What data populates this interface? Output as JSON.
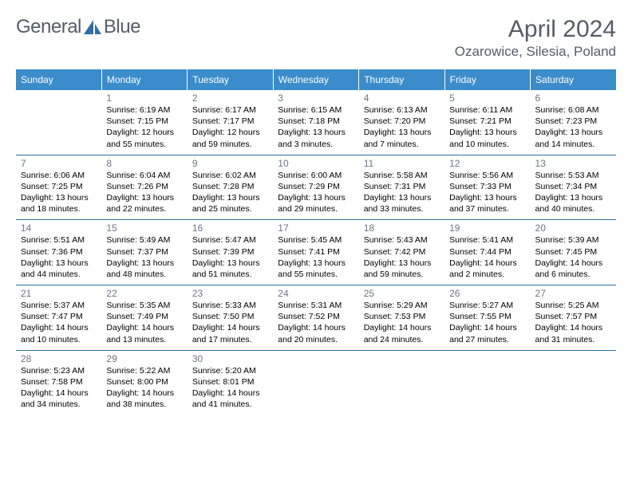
{
  "brand": {
    "part1": "General",
    "part2": "Blue",
    "logo_color": "#2f6fa3",
    "text_color": "#555d66"
  },
  "title": "April 2024",
  "location": "Ozarowice, Silesia, Poland",
  "header_bg": "#3b8ccb",
  "header_fg": "#ffffff",
  "rule_color": "#2f6fa3",
  "daynum_color": "#6b7684",
  "weekdays": [
    "Sunday",
    "Monday",
    "Tuesday",
    "Wednesday",
    "Thursday",
    "Friday",
    "Saturday"
  ],
  "weeks": [
    [
      null,
      {
        "n": "1",
        "sr": "Sunrise: 6:19 AM",
        "ss": "Sunset: 7:15 PM",
        "d1": "Daylight: 12 hours",
        "d2": "and 55 minutes."
      },
      {
        "n": "2",
        "sr": "Sunrise: 6:17 AM",
        "ss": "Sunset: 7:17 PM",
        "d1": "Daylight: 12 hours",
        "d2": "and 59 minutes."
      },
      {
        "n": "3",
        "sr": "Sunrise: 6:15 AM",
        "ss": "Sunset: 7:18 PM",
        "d1": "Daylight: 13 hours",
        "d2": "and 3 minutes."
      },
      {
        "n": "4",
        "sr": "Sunrise: 6:13 AM",
        "ss": "Sunset: 7:20 PM",
        "d1": "Daylight: 13 hours",
        "d2": "and 7 minutes."
      },
      {
        "n": "5",
        "sr": "Sunrise: 6:11 AM",
        "ss": "Sunset: 7:21 PM",
        "d1": "Daylight: 13 hours",
        "d2": "and 10 minutes."
      },
      {
        "n": "6",
        "sr": "Sunrise: 6:08 AM",
        "ss": "Sunset: 7:23 PM",
        "d1": "Daylight: 13 hours",
        "d2": "and 14 minutes."
      }
    ],
    [
      {
        "n": "7",
        "sr": "Sunrise: 6:06 AM",
        "ss": "Sunset: 7:25 PM",
        "d1": "Daylight: 13 hours",
        "d2": "and 18 minutes."
      },
      {
        "n": "8",
        "sr": "Sunrise: 6:04 AM",
        "ss": "Sunset: 7:26 PM",
        "d1": "Daylight: 13 hours",
        "d2": "and 22 minutes."
      },
      {
        "n": "9",
        "sr": "Sunrise: 6:02 AM",
        "ss": "Sunset: 7:28 PM",
        "d1": "Daylight: 13 hours",
        "d2": "and 25 minutes."
      },
      {
        "n": "10",
        "sr": "Sunrise: 6:00 AM",
        "ss": "Sunset: 7:29 PM",
        "d1": "Daylight: 13 hours",
        "d2": "and 29 minutes."
      },
      {
        "n": "11",
        "sr": "Sunrise: 5:58 AM",
        "ss": "Sunset: 7:31 PM",
        "d1": "Daylight: 13 hours",
        "d2": "and 33 minutes."
      },
      {
        "n": "12",
        "sr": "Sunrise: 5:56 AM",
        "ss": "Sunset: 7:33 PM",
        "d1": "Daylight: 13 hours",
        "d2": "and 37 minutes."
      },
      {
        "n": "13",
        "sr": "Sunrise: 5:53 AM",
        "ss": "Sunset: 7:34 PM",
        "d1": "Daylight: 13 hours",
        "d2": "and 40 minutes."
      }
    ],
    [
      {
        "n": "14",
        "sr": "Sunrise: 5:51 AM",
        "ss": "Sunset: 7:36 PM",
        "d1": "Daylight: 13 hours",
        "d2": "and 44 minutes."
      },
      {
        "n": "15",
        "sr": "Sunrise: 5:49 AM",
        "ss": "Sunset: 7:37 PM",
        "d1": "Daylight: 13 hours",
        "d2": "and 48 minutes."
      },
      {
        "n": "16",
        "sr": "Sunrise: 5:47 AM",
        "ss": "Sunset: 7:39 PM",
        "d1": "Daylight: 13 hours",
        "d2": "and 51 minutes."
      },
      {
        "n": "17",
        "sr": "Sunrise: 5:45 AM",
        "ss": "Sunset: 7:41 PM",
        "d1": "Daylight: 13 hours",
        "d2": "and 55 minutes."
      },
      {
        "n": "18",
        "sr": "Sunrise: 5:43 AM",
        "ss": "Sunset: 7:42 PM",
        "d1": "Daylight: 13 hours",
        "d2": "and 59 minutes."
      },
      {
        "n": "19",
        "sr": "Sunrise: 5:41 AM",
        "ss": "Sunset: 7:44 PM",
        "d1": "Daylight: 14 hours",
        "d2": "and 2 minutes."
      },
      {
        "n": "20",
        "sr": "Sunrise: 5:39 AM",
        "ss": "Sunset: 7:45 PM",
        "d1": "Daylight: 14 hours",
        "d2": "and 6 minutes."
      }
    ],
    [
      {
        "n": "21",
        "sr": "Sunrise: 5:37 AM",
        "ss": "Sunset: 7:47 PM",
        "d1": "Daylight: 14 hours",
        "d2": "and 10 minutes."
      },
      {
        "n": "22",
        "sr": "Sunrise: 5:35 AM",
        "ss": "Sunset: 7:49 PM",
        "d1": "Daylight: 14 hours",
        "d2": "and 13 minutes."
      },
      {
        "n": "23",
        "sr": "Sunrise: 5:33 AM",
        "ss": "Sunset: 7:50 PM",
        "d1": "Daylight: 14 hours",
        "d2": "and 17 minutes."
      },
      {
        "n": "24",
        "sr": "Sunrise: 5:31 AM",
        "ss": "Sunset: 7:52 PM",
        "d1": "Daylight: 14 hours",
        "d2": "and 20 minutes."
      },
      {
        "n": "25",
        "sr": "Sunrise: 5:29 AM",
        "ss": "Sunset: 7:53 PM",
        "d1": "Daylight: 14 hours",
        "d2": "and 24 minutes."
      },
      {
        "n": "26",
        "sr": "Sunrise: 5:27 AM",
        "ss": "Sunset: 7:55 PM",
        "d1": "Daylight: 14 hours",
        "d2": "and 27 minutes."
      },
      {
        "n": "27",
        "sr": "Sunrise: 5:25 AM",
        "ss": "Sunset: 7:57 PM",
        "d1": "Daylight: 14 hours",
        "d2": "and 31 minutes."
      }
    ],
    [
      {
        "n": "28",
        "sr": "Sunrise: 5:23 AM",
        "ss": "Sunset: 7:58 PM",
        "d1": "Daylight: 14 hours",
        "d2": "and 34 minutes."
      },
      {
        "n": "29",
        "sr": "Sunrise: 5:22 AM",
        "ss": "Sunset: 8:00 PM",
        "d1": "Daylight: 14 hours",
        "d2": "and 38 minutes."
      },
      {
        "n": "30",
        "sr": "Sunrise: 5:20 AM",
        "ss": "Sunset: 8:01 PM",
        "d1": "Daylight: 14 hours",
        "d2": "and 41 minutes."
      },
      null,
      null,
      null,
      null
    ]
  ]
}
